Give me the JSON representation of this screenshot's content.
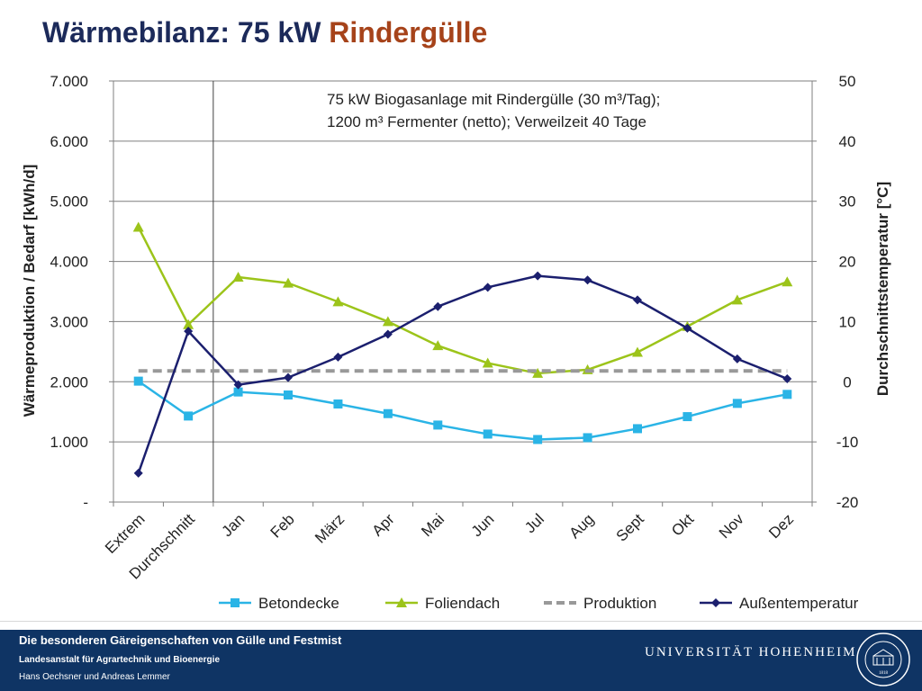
{
  "slide": {
    "title_prefix": "Wärmebilanz: 75 kW ",
    "title_accent": "Rindergülle",
    "accent_color": "#a6431a",
    "title_color": "#1c2a5a"
  },
  "chart_data": {
    "type": "line",
    "annotation": [
      "75 kW Biogasanlage mit Rindergülle (30 m³/Tag);",
      "1200 m³ Fermenter (netto); Verweilzeit 40 Tage"
    ],
    "ylabel": "Wärmeproduktion / Bedarf [kWh/d]",
    "y2label": "Durchschnittstemperatur [°C]",
    "ylim": [
      0,
      7000
    ],
    "y2lim": [
      -20,
      50
    ],
    "y_ticks": [
      "-",
      "1.000",
      "2.000",
      "3.000",
      "4.000",
      "5.000",
      "6.000",
      "7.000"
    ],
    "y2_ticks": [
      "-20",
      "-10",
      "0",
      "10",
      "20",
      "30",
      "40",
      "50"
    ],
    "categories": [
      "Extrem",
      "Durchschnitt",
      "Jan",
      "Feb",
      "März",
      "Apr",
      "Mai",
      "Jun",
      "Jul",
      "Aug",
      "Sept",
      "Okt",
      "Nov",
      "Dez"
    ],
    "grid": true,
    "legend_position": "bottom",
    "series": [
      {
        "name": "Betondecke",
        "axis": "left",
        "color": "#2ab4e6",
        "marker": "square",
        "dashed": false,
        "values": [
          2010,
          1430,
          1830,
          1780,
          1630,
          1470,
          1280,
          1130,
          1040,
          1070,
          1220,
          1420,
          1640,
          1790
        ]
      },
      {
        "name": "Foliendach",
        "axis": "left",
        "color": "#9cc41a",
        "marker": "triangle",
        "dashed": false,
        "values": [
          4570,
          2950,
          3740,
          3640,
          3330,
          3000,
          2600,
          2310,
          2140,
          2200,
          2490,
          2920,
          3360,
          3660
        ]
      },
      {
        "name": "Produktion",
        "axis": "left",
        "color": "#999999",
        "marker": "none",
        "dashed": true,
        "values": [
          2180,
          2180,
          2180,
          2180,
          2180,
          2180,
          2180,
          2180,
          2180,
          2180,
          2180,
          2180,
          2180,
          2180
        ]
      },
      {
        "name": "Außentemperatur",
        "axis": "right",
        "color": "#1b1f6e",
        "marker": "diamond",
        "dashed": false,
        "values": [
          -15.2,
          8.4,
          -0.5,
          0.7,
          4.1,
          7.9,
          12.5,
          15.7,
          17.6,
          16.9,
          13.6,
          8.9,
          3.8,
          0.5
        ]
      }
    ]
  },
  "footer": {
    "line1": "Die besonderen Gäreigenschaften von Gülle und Festmist",
    "line2": "Landesanstalt für Agrartechnik und Bioenergie",
    "line3": "Hans Oechsner  und  Andreas Lemmer",
    "university": "UNIVERSITÄT HOHENHEIM",
    "seal_text": "UNIVERSITÄT HOHENHEIM",
    "seal_year": "1818"
  }
}
